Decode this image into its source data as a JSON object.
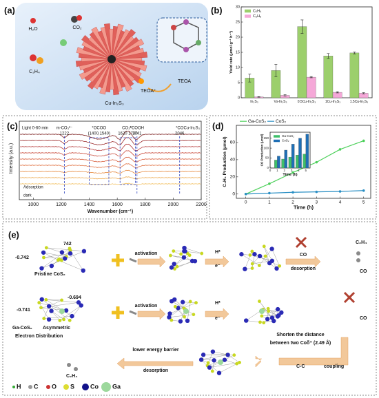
{
  "panel_labels": [
    "(a)",
    "(b)",
    "(c)",
    "(d)",
    "(e)"
  ],
  "panel_a": {
    "labels": [
      "H₂O",
      "CO₂",
      "C₂H₄",
      "Cu-In₂S₃",
      "TEOA",
      "TEOA⁺"
    ]
  },
  "chart_data": [
    {
      "type": "bar",
      "ylabel": "Yield rate (μmol g⁻¹ h⁻¹)",
      "categories": [
        "In₂S₃",
        "Vs-In₂S₃",
        "0.5Cu-In₂S₃",
        "1Cu-In₂S₃",
        "1.5Cu-In₂S₃"
      ],
      "series": [
        {
          "name": "C₂H₄",
          "color": "#9ccf6c",
          "values": [
            6.5,
            9.0,
            23.5,
            13.8,
            14.8
          ],
          "errors": [
            1.3,
            2.0,
            2.2,
            0.8,
            0.3
          ]
        },
        {
          "name": "C₂H₆",
          "color": "#f5a8d8",
          "values": [
            0.3,
            0.8,
            6.8,
            1.8,
            1.5
          ],
          "errors": [
            0.1,
            0.2,
            0.2,
            0.2,
            0.2
          ]
        }
      ],
      "ylim": [
        0,
        30
      ],
      "yticks": [
        0,
        5,
        10,
        15,
        20,
        25,
        30
      ],
      "legend": "upper left"
    },
    {
      "type": "line",
      "xlabel": "Time (h)",
      "ylabel": "C₂H₄ Production (μmol)",
      "x": [
        0,
        1,
        2,
        3,
        4,
        5
      ],
      "series": [
        {
          "name": "Ga-CoS₂",
          "color": "#4cd05a",
          "values": [
            0,
            12,
            25,
            37,
            52,
            62
          ]
        },
        {
          "name": "CoS₂",
          "color": "#2a8fc4",
          "values": [
            0,
            1,
            2,
            2.5,
            3,
            4
          ]
        }
      ],
      "xlim": [
        -0.4,
        5.3
      ],
      "xticks": [
        0,
        1,
        2,
        3,
        4,
        5
      ],
      "ylim": [
        -5,
        80
      ],
      "yticks": [
        0,
        20,
        40,
        60
      ],
      "legend": "upper left"
    },
    {
      "type": "bar",
      "xlabel": "Time (h)",
      "ylabel": "CO Production (μmol)",
      "x": [
        1,
        2,
        3,
        4,
        5
      ],
      "series": [
        {
          "name": "Ga-CoS₂",
          "color": "#3fbf6a",
          "values": [
            40,
            45,
            55,
            65,
            70
          ]
        },
        {
          "name": "CoS₂",
          "color": "#1f6fb5",
          "values": [
            60,
            90,
            120,
            150,
            170
          ]
        }
      ],
      "xlim": [
        0,
        5.6
      ],
      "xticks": [
        0,
        1,
        2,
        3,
        4,
        5
      ],
      "ylim": [
        0,
        180
      ],
      "yticks": [
        0,
        50,
        100,
        150
      ],
      "legend": "upper left"
    }
  ],
  "panel_c": {
    "xlabel": "Wavenumber (cm⁻¹)",
    "ylabel": "Intensity (a.u.)",
    "xlim": [
      900,
      2200
    ],
    "xticks": [
      1000,
      1200,
      1400,
      1600,
      1800,
      2000,
      2200
    ],
    "peak_lines": [
      1222,
      1741,
      2046
    ],
    "peak_names": [
      "m-CO₃²⁻",
      "*COOH",
      "*CO"
    ],
    "box_labels": [
      "*OCOO",
      "(1400,1540)",
      "CO₃²⁻",
      "1620 1730"
    ],
    "texts": [
      "Light 0-60 min",
      "Cu-In₂S₃",
      "Adsorption",
      "dark"
    ]
  },
  "panel_e": {
    "row1": [
      "742",
      "-0.742",
      "Pristine CoS₂",
      "activation",
      "H*",
      "e⁻",
      "CO",
      "desorption",
      "C₂H₄",
      "CO"
    ],
    "row2": [
      "-0.694",
      "-0.741",
      "Ga-CoS₂",
      "Asymmetric",
      "Electron Distribution",
      "activation",
      "H*",
      "e⁻",
      "Shorten the distance",
      "between two Coδ⁺ (2.49 Å)",
      "CO"
    ],
    "row3": [
      "C-C",
      "coupling",
      "lower energy barrier",
      "desorption",
      "C₂H₄"
    ],
    "legend": [
      "H",
      "C",
      "O",
      "S",
      "Co",
      "Ga"
    ]
  }
}
